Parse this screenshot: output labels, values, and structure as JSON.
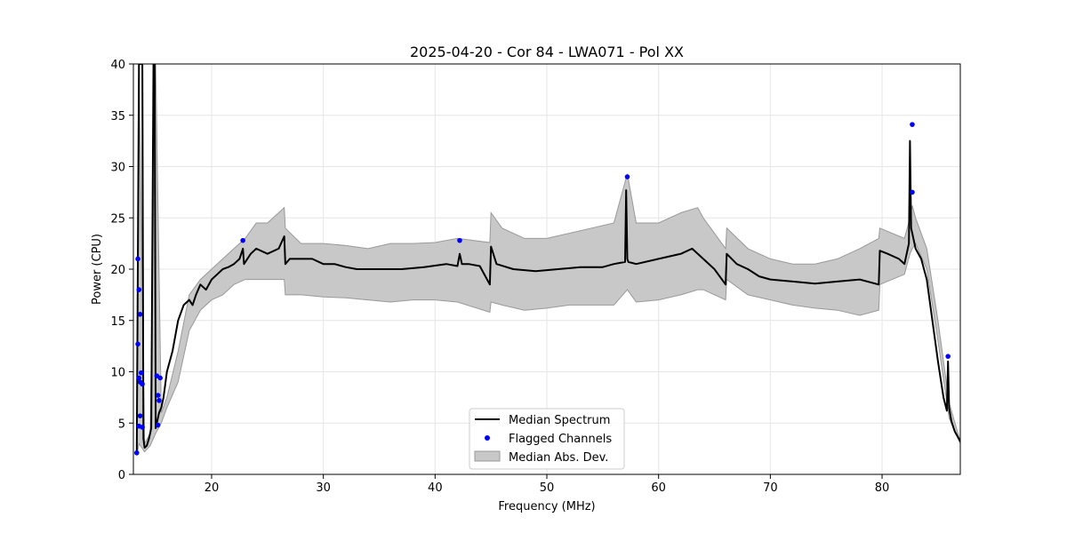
{
  "chart_data": {
    "type": "line",
    "title": "2025-04-20 - Cor 84 - LWA071 - Pol XX",
    "xlabel": "Frequency (MHz)",
    "ylabel": "Power (CPU)",
    "xlim": [
      13.0,
      87.0
    ],
    "ylim": [
      0,
      40
    ],
    "xticks": [
      20,
      30,
      40,
      50,
      60,
      70,
      80
    ],
    "yticks": [
      0,
      5,
      10,
      15,
      20,
      25,
      30,
      35,
      40
    ],
    "grid": true,
    "legend_position": "bottom-center",
    "colors": {
      "median": "#000000",
      "flagged": "#0000ff",
      "mad_fill": "#c8c8c8",
      "mad_edge": "#999999"
    },
    "series": [
      {
        "name": "Median Spectrum",
        "x": [
          13.3,
          13.5,
          13.6,
          13.7,
          13.8,
          13.9,
          14.0,
          14.2,
          14.4,
          14.6,
          14.8,
          14.9,
          15.0,
          15.2,
          15.3,
          15.5,
          15.7,
          16.0,
          16.5,
          17.0,
          17.5,
          18.0,
          18.3,
          18.6,
          19.0,
          19.5,
          20.0,
          20.5,
          21.0,
          21.5,
          22.0,
          22.5,
          22.8,
          22.9,
          23.5,
          24.0,
          25.0,
          26.0,
          26.5,
          26.6,
          27.0,
          28.0,
          29.0,
          30.0,
          31.0,
          32.0,
          33.0,
          35.0,
          37.0,
          39.0,
          41.0,
          42.0,
          42.2,
          42.4,
          43.0,
          44.0,
          44.9,
          45.0,
          45.5,
          47.0,
          49.0,
          51.0,
          53.0,
          55.0,
          56.0,
          57.0,
          57.1,
          57.2,
          57.3,
          58.0,
          60.0,
          62.0,
          63.0,
          64.0,
          65.0,
          66.0,
          66.1,
          67.0,
          68.0,
          69.0,
          70.0,
          72.0,
          74.0,
          76.0,
          78.0,
          79.7,
          79.8,
          80.5,
          81.5,
          82.0,
          82.4,
          82.5,
          82.6,
          82.7,
          83.0,
          83.5,
          84.0,
          84.5,
          85.0,
          85.5,
          85.8,
          85.9,
          86.0,
          86.2,
          86.5,
          87.0
        ],
        "y": [
          2.1,
          40,
          40,
          40,
          40,
          3.5,
          2.6,
          2.8,
          3.5,
          4.5,
          40,
          40,
          4.5,
          5.5,
          6.0,
          6.5,
          7.5,
          10,
          12,
          15,
          16.5,
          17,
          16.5,
          17.5,
          18.5,
          18,
          19,
          19.5,
          20,
          20.2,
          20.5,
          21,
          22,
          20.5,
          21.5,
          22,
          21.5,
          22,
          23.2,
          20.5,
          21,
          21,
          21,
          20.5,
          20.5,
          20.2,
          20,
          20,
          20,
          20.2,
          20.5,
          20.3,
          21.5,
          20.5,
          20.5,
          20.3,
          18.5,
          22.2,
          20.5,
          20,
          19.8,
          20,
          20.2,
          20.2,
          20.5,
          20.7,
          27.7,
          21,
          20.7,
          20.5,
          21,
          21.5,
          22,
          21,
          20,
          18.5,
          21.5,
          20.5,
          20,
          19.3,
          19,
          18.8,
          18.6,
          18.8,
          19,
          18.5,
          21.8,
          21.5,
          21,
          20.5,
          22.5,
          32.5,
          24,
          23.5,
          22,
          21,
          19,
          15,
          11,
          7.5,
          6.2,
          11,
          6.5,
          5.2,
          4.2,
          3.2
        ]
      },
      {
        "name": "Flagged Channels",
        "points": [
          [
            13.3,
            2.1
          ],
          [
            13.4,
            21.0
          ],
          [
            13.4,
            12.7
          ],
          [
            13.5,
            18.0
          ],
          [
            13.6,
            15.6
          ],
          [
            13.5,
            9.4
          ],
          [
            13.6,
            9.0
          ],
          [
            13.7,
            9.9
          ],
          [
            13.8,
            8.8
          ],
          [
            13.5,
            4.7
          ],
          [
            13.6,
            5.7
          ],
          [
            13.8,
            4.6
          ],
          [
            15.1,
            9.6
          ],
          [
            15.2,
            7.7
          ],
          [
            15.3,
            7.2
          ],
          [
            15.4,
            9.4
          ],
          [
            15.2,
            4.8
          ],
          [
            22.8,
            22.8
          ],
          [
            42.2,
            22.8
          ],
          [
            57.2,
            29.0
          ],
          [
            82.7,
            34.1
          ],
          [
            82.7,
            27.5
          ],
          [
            85.9,
            11.5
          ]
        ]
      },
      {
        "name": "Median Abs. Dev.",
        "upper_x": [
          13.3,
          13.5,
          14.0,
          14.5,
          15.0,
          15.5,
          16.0,
          17.0,
          18.0,
          19.0,
          20.0,
          21.0,
          22.0,
          23.0,
          24.0,
          25.0,
          26.5,
          26.6,
          28.0,
          30.0,
          32.0,
          34.0,
          36.0,
          38.0,
          40.0,
          42.0,
          44.9,
          45.0,
          46.0,
          48.0,
          50.0,
          52.0,
          54.0,
          56.0,
          57.2,
          58.0,
          60.0,
          62.0,
          63.5,
          64.0,
          66.0,
          66.1,
          68.0,
          70.0,
          72.0,
          74.0,
          76.0,
          78.0,
          79.7,
          79.8,
          82.0,
          82.5,
          82.7,
          83.0,
          84.0,
          85.0,
          86.0,
          87.0
        ],
        "upper_y": [
          2.5,
          40,
          3.0,
          4.0,
          40,
          6.0,
          7.5,
          12,
          17.5,
          19,
          20,
          21,
          22,
          23,
          24.5,
          24.5,
          26,
          24,
          22.5,
          22.5,
          22.3,
          22.0,
          22.5,
          22.5,
          22.6,
          23.0,
          22.6,
          25.5,
          24,
          23,
          23,
          23.5,
          24,
          24.5,
          29.3,
          24.5,
          24.5,
          25.5,
          26,
          25,
          22,
          24,
          22,
          21,
          20.5,
          20.5,
          21,
          22,
          23,
          24,
          23,
          25,
          26.2,
          25,
          22,
          15,
          7,
          3.2
        ],
        "lower_x": [
          13.3,
          13.5,
          14.0,
          14.5,
          15.0,
          15.5,
          16.0,
          17.0,
          18.0,
          19.0,
          20.0,
          21.0,
          22.0,
          23.0,
          24.0,
          25.0,
          26.5,
          26.6,
          28.0,
          30.0,
          32.0,
          34.0,
          36.0,
          38.0,
          40.0,
          42.0,
          44.9,
          45.0,
          46.0,
          48.0,
          50.0,
          52.0,
          54.0,
          56.0,
          57.2,
          58.0,
          60.0,
          62.0,
          63.5,
          64.0,
          66.0,
          66.1,
          68.0,
          70.0,
          72.0,
          74.0,
          76.0,
          78.0,
          79.7,
          79.8,
          82.0,
          82.5,
          82.7,
          83.0,
          84.0,
          85.0,
          86.0,
          87.0
        ],
        "lower_y": [
          1.8,
          3.0,
          2.2,
          2.8,
          4.0,
          5.0,
          6.5,
          9,
          14,
          16,
          17,
          17.5,
          18.5,
          19,
          19,
          19,
          19,
          17.5,
          17.5,
          17.3,
          17.2,
          17,
          16.8,
          17,
          17,
          16.8,
          15.8,
          16.8,
          16.5,
          16,
          16.2,
          16.5,
          16.5,
          16.5,
          18,
          16.8,
          17,
          17.5,
          18,
          18,
          17,
          19,
          17.5,
          17,
          16.5,
          16.2,
          16.0,
          15.5,
          16,
          18.5,
          19.5,
          21.5,
          22,
          22.5,
          20,
          13,
          5.5,
          3.0
        ]
      }
    ]
  }
}
